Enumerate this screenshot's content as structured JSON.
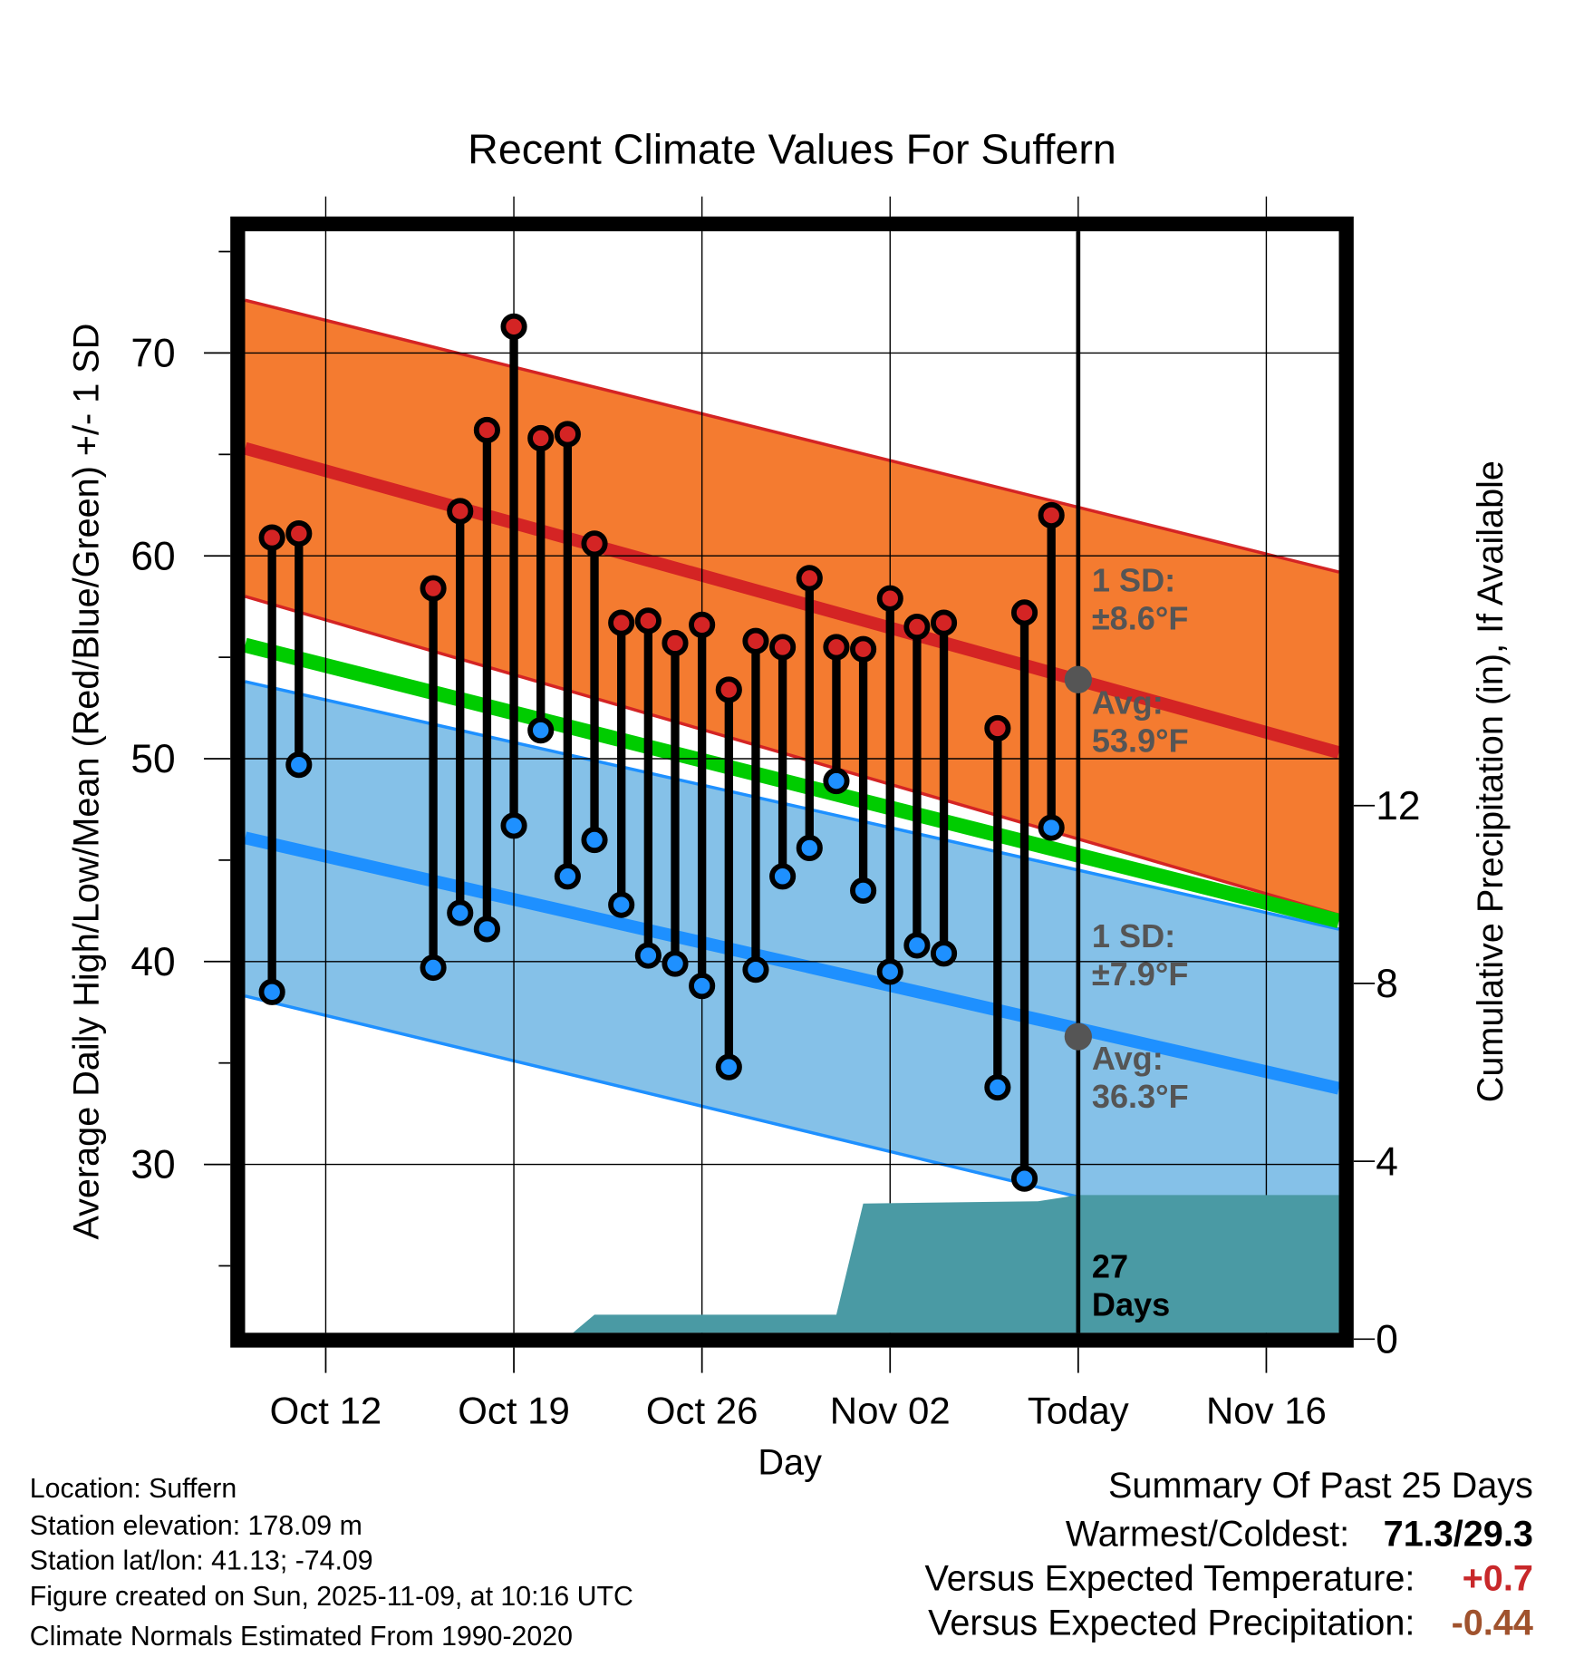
{
  "chart_data": {
    "type": "line",
    "title": "Recent Climate Values For Suffern",
    "xlabel": "Day",
    "ylabel": "Average Daily High/Low/Mean (Red/Blue/Green) +/- 1 SD",
    "y2label": "Cumulative Precipitation (in), If Available",
    "ylim": [
      21.7,
      76.0
    ],
    "y2lim": [
      0,
      14
    ],
    "yticks": [
      "30",
      "40",
      "50",
      "60",
      "70"
    ],
    "y2ticks": [
      "0",
      "4",
      "8",
      "12"
    ],
    "xticks": [
      "Oct 12",
      "Oct 19",
      "Oct 26",
      "Nov 02",
      "Today",
      "Nov 16"
    ],
    "xtick_days": [
      3,
      10,
      17,
      24,
      31,
      38
    ],
    "xlim_days": [
      0,
      40.7
    ],
    "x_day0": "Oct 09",
    "grid": true,
    "observations": {
      "day": [
        1,
        2,
        7,
        8,
        9,
        10,
        11,
        12,
        13,
        14,
        15,
        16,
        17,
        18,
        19,
        20,
        21,
        22,
        23,
        24,
        25,
        26,
        28,
        29,
        30
      ],
      "high": [
        60.9,
        61.1,
        58.4,
        62.2,
        66.2,
        71.3,
        65.8,
        66.0,
        60.6,
        56.7,
        56.8,
        55.7,
        56.6,
        53.4,
        55.8,
        55.5,
        58.9,
        55.5,
        55.4,
        57.9,
        56.5,
        56.7,
        51.5,
        57.2,
        62.0
      ],
      "low": [
        38.5,
        49.7,
        39.7,
        42.4,
        41.6,
        46.7,
        51.4,
        44.2,
        46.0,
        42.8,
        40.3,
        39.9,
        38.8,
        34.8,
        39.6,
        44.2,
        45.6,
        48.9,
        43.5,
        39.5,
        40.8,
        40.4,
        33.8,
        29.3,
        46.6
      ]
    },
    "normals": {
      "day": [
        0,
        40.7
      ],
      "high_avg": [
        65.3,
        50.3
      ],
      "high_upper": [
        72.6,
        59.2
      ],
      "high_lower": [
        58.0,
        42.3
      ],
      "mean": [
        55.6,
        42.0
      ],
      "low_avg": [
        46.1,
        33.75
      ],
      "low_upper": [
        53.8,
        41.6
      ],
      "low_lower": [
        38.3,
        25.3
      ]
    },
    "precip": {
      "day": [
        0,
        12.2,
        13,
        22,
        23,
        29.5,
        29.5,
        31,
        40.7
      ],
      "value": [
        0,
        0,
        0.55,
        0.55,
        3.05,
        3.1,
        3.1,
        3.24,
        3.24
      ]
    },
    "annotations": {
      "high_sd": [
        "1 SD:",
        "±8.6°F"
      ],
      "high_avg": [
        "Avg:",
        "53.9°F"
      ],
      "low_sd": [
        "1 SD:",
        "±7.9°F"
      ],
      "low_avg": [
        "Avg:",
        "36.3°F"
      ],
      "days": [
        "27",
        "Days"
      ],
      "today_high_avg": 53.9,
      "today_low_avg": 36.3
    },
    "colors": {
      "high": "#d42424",
      "low": "#1e90ff",
      "high_band": "#f47b30",
      "low_band": "#85c1e8",
      "mean": "#00cc00",
      "precip": "#4a9aa4"
    }
  },
  "footer": {
    "location": "Location: Suffern",
    "elevation": "Station elevation: 178.09 m",
    "latlon": "Station lat/lon: 41.13; -74.09",
    "created": "Figure created on Sun, 2025-11-09, at 10:16 UTC",
    "normals": "Climate Normals Estimated From 1990-2020"
  },
  "summary": {
    "title": "Summary Of Past 25 Days",
    "warm_cold_label": "Warmest/Coldest:",
    "warm_cold_value": "71.3/29.3",
    "temp_label": "Versus Expected Temperature:",
    "temp_value": "+0.7",
    "precip_label": "Versus Expected Precipitation:",
    "precip_value": "-0.44"
  }
}
